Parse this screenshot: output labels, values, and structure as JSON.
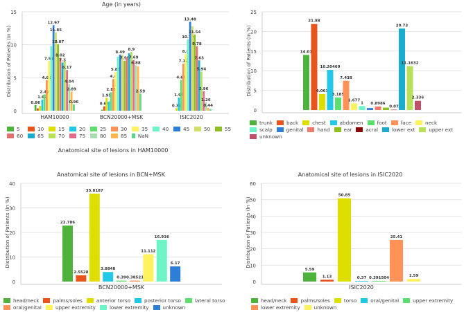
{
  "chart_data": [
    {
      "type": "bar",
      "title": "Age (in years)",
      "ylabel": "Distribution of Patients (In %)",
      "ylim": [
        0,
        15
      ],
      "yticks": [
        0,
        5,
        10,
        15
      ],
      "categories": [
        "HAM10000",
        "BCN20000+MSK",
        "ISIC2020"
      ],
      "series": [
        {
          "name": "5",
          "color": "#4db33d",
          "values": [
            0.86,
            0.15,
            0
          ]
        },
        {
          "name": "10",
          "color": "#e8541c",
          "values": [
            0.35,
            0.66,
            0
          ]
        },
        {
          "name": "15",
          "color": "#dede00",
          "values": [
            0.75,
            1.95,
            0.39
          ]
        },
        {
          "name": "20",
          "color": "#22c8e5",
          "values": [
            1.69,
            1.4,
            1.98
          ]
        },
        {
          "name": "25",
          "color": "#5ddf6f",
          "values": [
            2.47,
            2.81,
            4.66
          ]
        },
        {
          "name": "30",
          "color": "#ff9256",
          "values": [
            4.63,
            4.8,
            7.12
          ]
        },
        {
          "name": "35",
          "color": "#fff25e",
          "values": [
            7.52,
            5.86,
            8.6
          ]
        },
        {
          "name": "40",
          "color": "#6df5c8",
          "values": [
            9.8,
            8.2,
            10.79
          ]
        },
        {
          "name": "45",
          "color": "#2e7ed8",
          "values": [
            12.97,
            8.49,
            13.48
          ]
        },
        {
          "name": "50",
          "color": "#d4de6a",
          "values": [
            11.85,
            8.5,
            12.8
          ]
        },
        {
          "name": "55",
          "color": "#8cbf1f",
          "values": [
            10.07,
            7.58,
            11.54
          ]
        },
        {
          "name": "60",
          "color": "#e0706e",
          "values": [
            8.02,
            8.1,
            9.78
          ]
        },
        {
          "name": "65",
          "color": "#1aaccc",
          "values": [
            7.3,
            8.7,
            7.63
          ]
        },
        {
          "name": "70",
          "color": "#b8e05a",
          "values": [
            7.5,
            8.9,
            5.94
          ]
        },
        {
          "name": "75",
          "color": "#e06a8a",
          "values": [
            6.17,
            7.69,
            2.96
          ]
        },
        {
          "name": "80",
          "color": "#a8ddb0",
          "values": [
            4.04,
            6.88,
            1.26
          ]
        },
        {
          "name": "85",
          "color": "#ffb74d",
          "values": [
            2.89,
            6.7,
            0.44
          ]
        },
        {
          "name": "NaN",
          "color": "#5ad88a",
          "values": [
            0.96,
            2.59,
            0.2
          ]
        }
      ],
      "data_labels": [
        [
          "0.86",
          "",
          "",
          "1.69",
          "2.47",
          "4.63",
          "7.52",
          "",
          "12.97",
          "11.85",
          "10.07",
          "8.02",
          "7.3",
          "",
          "6.17",
          "4.04",
          "2.89",
          "0.96"
        ],
        [
          "",
          "0.66",
          "1.95",
          "",
          "2.81",
          "4.8",
          "5.86",
          "",
          "8.49",
          "",
          "7.58",
          "",
          "",
          "8.9",
          "7.69",
          "6.88",
          "",
          "2.59"
        ],
        [
          "",
          "",
          "0.39",
          "1.98",
          "4.66",
          "7.12",
          "8.6",
          "10.79",
          "13.48",
          "",
          "11.54",
          "9.78",
          "7.63",
          "5.94",
          "2.96",
          "1.26",
          "0.44",
          ""
        ]
      ]
    },
    {
      "type": "bar",
      "title": "Anatomical site of lesions in HAM10000",
      "ylabel": "Distribution of Patients (In %)",
      "ylim": [
        0,
        25
      ],
      "yticks": [
        0,
        5,
        10,
        15,
        20,
        25
      ],
      "categories": [
        "trunk",
        "back",
        "chest",
        "abdomen",
        "foot",
        "face",
        "neck",
        "scalp",
        "genital",
        "hand",
        "ear",
        "acral",
        "lower ext",
        "upper ext",
        "unknown"
      ],
      "values": [
        14.01,
        21.88,
        4.063,
        10.20469,
        3.185,
        7.438,
        1.677,
        1,
        0.5,
        0.8986,
        0.6,
        0.07,
        20.73,
        11.1632,
        2.336
      ],
      "data_labels": [
        "14.01",
        "21.88",
        "4.063",
        "10.20469",
        "3.185",
        "7.438",
        "1.677",
        "1",
        "",
        "0.8986",
        "",
        "0.07",
        "20.73",
        "11.1632",
        "2.336"
      ],
      "colors": [
        "#4db33d",
        "#e8541c",
        "#dede00",
        "#22c8e5",
        "#5ddf6f",
        "#ff9256",
        "#fff25e",
        "#6df5c8",
        "#2e7ed8",
        "#f07a6a",
        "#8cbf1f",
        "#8b0000",
        "#1aaccc",
        "#b8e05a",
        "#c0506a"
      ]
    },
    {
      "type": "bar",
      "title": "Anatomical site of lesions in BCN+MSK",
      "xlabel": "BCN20000+MSK",
      "ylabel": "Distribution of Patients (In %)",
      "ylim": [
        0,
        40
      ],
      "yticks": [
        0,
        10,
        20,
        30,
        40
      ],
      "categories": [
        "head/neck",
        "palms/soles",
        "anterior torso",
        "posterior torso",
        "lateral torso",
        "oral/genital",
        "upper extremity",
        "lower extremity",
        "unknown"
      ],
      "values": [
        22.786,
        2.5528,
        35.8187,
        3.8848,
        0.39,
        0.38521,
        11.112,
        16.936,
        6.17
      ],
      "data_labels": [
        "22.786",
        "2.5528",
        "35.8187",
        "3.8848",
        "0.39",
        "0.38521",
        "11.112",
        "16.936",
        "6.17"
      ],
      "colors": [
        "#4db33d",
        "#e8541c",
        "#dede00",
        "#22c8e5",
        "#5ddf6f",
        "#ff9256",
        "#fff25e",
        "#6df5c8",
        "#2e7ed8"
      ]
    },
    {
      "type": "bar",
      "title": "Anatomical site of lesions in ISIC2020",
      "xlabel": "ISIC2020",
      "ylabel": "Distribution of Patients (In %)",
      "ylim": [
        0,
        60
      ],
      "yticks": [
        0,
        10,
        20,
        30,
        40,
        50,
        60
      ],
      "categories": [
        "head/neck",
        "palms/soles",
        "torso",
        "oral/genital",
        "upper extremity",
        "lower extremity",
        "unknown"
      ],
      "values": [
        5.59,
        1.13,
        50.85,
        0.37,
        0.391504,
        25.41,
        1.59
      ],
      "data_labels": [
        "5.59",
        "1.13",
        "50.85",
        "0.37",
        "0.391504",
        "25.41",
        "1.59"
      ],
      "colors": [
        "#4db33d",
        "#e8541c",
        "#dede00",
        "#22c8e5",
        "#5ddf6f",
        "#ff9256",
        "#fff25e"
      ]
    }
  ]
}
